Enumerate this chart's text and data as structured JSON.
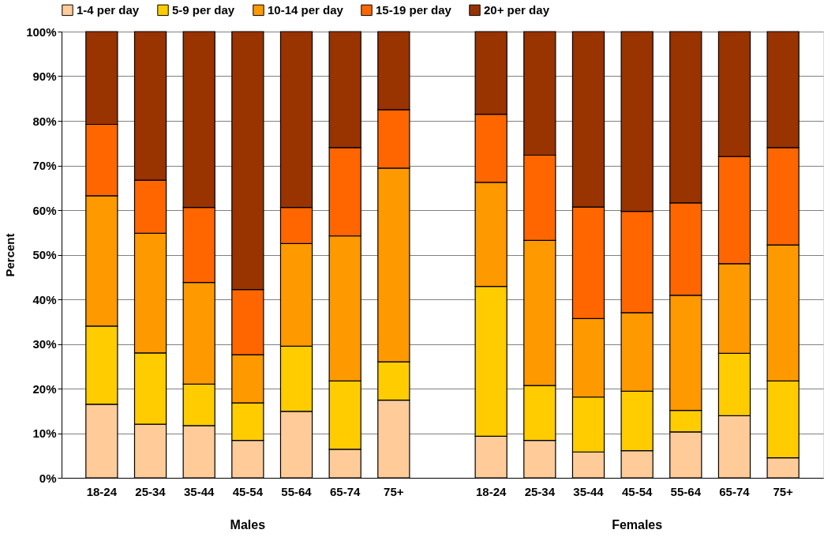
{
  "chart_data": {
    "type": "bar",
    "stacked": true,
    "categories": [
      "18-24",
      "25-34",
      "35-44",
      "45-54",
      "55-64",
      "65-74",
      "75+",
      null,
      "18-24",
      "25-34",
      "35-44",
      "45-54",
      "55-64",
      "65-74",
      "75+"
    ],
    "series": [
      {
        "name": "1-4 per day",
        "color": "#ffcc99",
        "values": [
          16.5,
          12.0,
          11.7,
          8.4,
          14.9,
          6.4,
          17.4,
          null,
          9.3,
          8.4,
          5.8,
          6.1,
          10.3,
          13.9,
          4.5
        ]
      },
      {
        "name": "5-9 per day",
        "color": "#ffcc00",
        "values": [
          17.5,
          16.0,
          9.3,
          8.4,
          14.6,
          15.3,
          8.6,
          null,
          33.6,
          12.3,
          12.3,
          13.3,
          4.8,
          14.0,
          17.2
        ]
      },
      {
        "name": "10-14 per day",
        "color": "#ff9900",
        "values": [
          29.2,
          26.8,
          22.8,
          10.8,
          23.0,
          32.5,
          43.4,
          null,
          23.3,
          32.5,
          17.6,
          17.6,
          25.8,
          20.1,
          30.5
        ]
      },
      {
        "name": "15-19 per day",
        "color": "#ff6600",
        "values": [
          16.0,
          11.9,
          16.8,
          14.6,
          8.1,
          19.8,
          13.1,
          null,
          15.3,
          19.1,
          25.0,
          22.7,
          20.7,
          24.0,
          21.8
        ]
      },
      {
        "name": "20+ per day",
        "color": "#993300",
        "values": [
          20.8,
          33.3,
          39.4,
          57.8,
          39.4,
          26.0,
          17.5,
          null,
          18.5,
          27.7,
          39.3,
          40.3,
          38.4,
          28.0,
          26.0
        ]
      }
    ],
    "ylabel": "Percent",
    "ylim": [
      0,
      100
    ],
    "yticks": [
      {
        "value": 0,
        "label": "0%"
      },
      {
        "value": 10,
        "label": "10%"
      },
      {
        "value": 20,
        "label": "20%"
      },
      {
        "value": 30,
        "label": "30%"
      },
      {
        "value": 40,
        "label": "40%"
      },
      {
        "value": 50,
        "label": "50%"
      },
      {
        "value": 60,
        "label": "60%"
      },
      {
        "value": 70,
        "label": "70%"
      },
      {
        "value": 80,
        "label": "80%"
      },
      {
        "value": 90,
        "label": "90%"
      },
      {
        "value": 100,
        "label": "100%"
      }
    ],
    "annotations": [
      "Males",
      "Females"
    ],
    "grid": "y",
    "legend": "top"
  }
}
